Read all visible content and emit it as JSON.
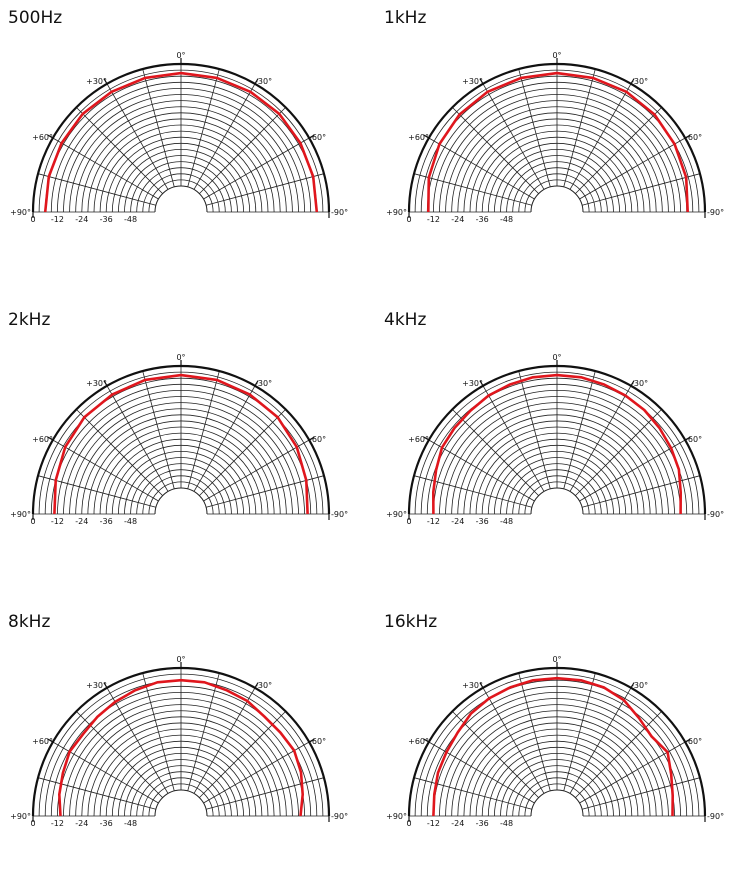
{
  "chart_data": [
    {
      "type": "polar-line",
      "title": "500Hz",
      "angle_labels": {
        "top": "0°",
        "left30": "+30°",
        "right30": "-30°",
        "left60": "+60°",
        "right60": "-60°",
        "left90": "+90°",
        "right90": "-90°"
      },
      "radial_tick_labels": [
        "0",
        "-12",
        "-24",
        "-36",
        "-48"
      ],
      "r_range_db": [
        -60,
        0
      ],
      "series": [
        {
          "color": "#e0161d",
          "angles_deg": [
            -90,
            -75,
            -60,
            -45,
            -30,
            -15,
            0,
            15,
            30,
            45,
            60,
            75,
            90
          ],
          "values_db": [
            -6,
            -5.5,
            -5,
            -4.5,
            -4.5,
            -4.5,
            -4.5,
            -4.5,
            -4.5,
            -4.5,
            -5,
            -5.5,
            -6
          ]
        }
      ]
    },
    {
      "type": "polar-line",
      "title": "1kHz",
      "angle_labels": {
        "top": "0°",
        "left30": "+30°",
        "right30": "-30°",
        "left60": "+60°",
        "right60": "-60°",
        "left90": "+90°",
        "right90": "-90°"
      },
      "radial_tick_labels": [
        "0",
        "-12",
        "-24",
        "-36",
        "-48"
      ],
      "r_range_db": [
        -60,
        0
      ],
      "series": [
        {
          "color": "#e0161d",
          "angles_deg": [
            -90,
            -75,
            -60,
            -45,
            -30,
            -15,
            0,
            15,
            30,
            45,
            60,
            75,
            90
          ],
          "values_db": [
            -8.5,
            -7,
            -6,
            -5,
            -4.5,
            -4.5,
            -4.5,
            -4.5,
            -4.5,
            -5,
            -6,
            -7.5,
            -9.5
          ]
        }
      ]
    },
    {
      "type": "polar-line",
      "title": "2kHz",
      "angle_labels": {
        "top": "0°",
        "left30": "+30°",
        "right30": "-30°",
        "left60": "+60°",
        "right60": "-60°",
        "left90": "+90°",
        "right90": "-90°"
      },
      "radial_tick_labels": [
        "0",
        "-12",
        "-24",
        "-36",
        "-48"
      ],
      "r_range_db": [
        -60,
        0
      ],
      "series": [
        {
          "color": "#e0161d",
          "angles_deg": [
            -90,
            -75,
            -60,
            -45,
            -30,
            -15,
            0,
            15,
            30,
            45,
            60,
            75,
            90
          ],
          "values_db": [
            -10.5,
            -9,
            -7,
            -5.5,
            -5,
            -4.5,
            -4.5,
            -4.5,
            -5,
            -5.5,
            -7,
            -9,
            -10.5
          ]
        }
      ]
    },
    {
      "type": "polar-line",
      "title": "4kHz",
      "angle_labels": {
        "top": "0°",
        "left30": "+30°",
        "right30": "-30°",
        "left60": "+60°",
        "right60": "-60°",
        "left90": "+90°",
        "right90": "-90°"
      },
      "radial_tick_labels": [
        "0",
        "-12",
        "-24",
        "-36",
        "-48"
      ],
      "r_range_db": [
        -60,
        0
      ],
      "series": [
        {
          "color": "#e0161d",
          "angles_deg": [
            -90,
            -80,
            -70,
            -60,
            -50,
            -40,
            -30,
            -20,
            -10,
            0,
            10,
            20,
            30,
            40,
            50,
            60,
            70,
            80,
            90
          ],
          "values_db": [
            -12,
            -11,
            -9,
            -8,
            -7,
            -6,
            -5.5,
            -5,
            -4.5,
            -4.5,
            -4.5,
            -5,
            -5.5,
            -6.5,
            -7,
            -7.5,
            -9.5,
            -11,
            -12
          ]
        }
      ]
    },
    {
      "type": "polar-line",
      "title": "8kHz",
      "angle_labels": {
        "top": "0°",
        "left30": "+30°",
        "right30": "-30°",
        "left60": "+60°",
        "right60": "-60°",
        "left90": "+90°",
        "right90": "-90°"
      },
      "radial_tick_labels": [
        "0",
        "-12",
        "-24",
        "-36",
        "-48"
      ],
      "r_range_db": [
        -60,
        0
      ],
      "series": [
        {
          "color": "#e0161d",
          "angles_deg": [
            -90,
            -80,
            -70,
            -60,
            -50,
            -40,
            -30,
            -20,
            -10,
            0,
            10,
            20,
            30,
            40,
            50,
            60,
            70,
            80,
            90
          ],
          "values_db": [
            -14,
            -12,
            -10,
            -8.5,
            -9,
            -9,
            -7.5,
            -7,
            -6,
            -6,
            -6,
            -7,
            -8,
            -9,
            -10,
            -9.5,
            -11,
            -12,
            -13.5
          ]
        }
      ]
    },
    {
      "type": "polar-line",
      "title": "16kHz",
      "angle_labels": {
        "top": "0°",
        "left30": "+30°",
        "right30": "-30°",
        "left60": "+60°",
        "right60": "-60°",
        "left90": "+90°",
        "right90": "-90°"
      },
      "radial_tick_labels": [
        "0",
        "-12",
        "-24",
        "-36",
        "-48"
      ],
      "r_range_db": [
        -60,
        0
      ],
      "series": [
        {
          "color": "#e0161d",
          "angles_deg": [
            -90,
            -80,
            -70,
            -60,
            -50,
            -40,
            -30,
            -20,
            -10,
            0,
            10,
            20,
            30,
            40,
            50,
            60,
            70,
            80,
            90
          ],
          "values_db": [
            -16,
            -15,
            -13,
            -10,
            -12,
            -10,
            -7,
            -5.5,
            -5,
            -5,
            -5,
            -5.5,
            -6,
            -7,
            -9,
            -10,
            -10.5,
            -11.5,
            -12
          ]
        }
      ]
    }
  ]
}
